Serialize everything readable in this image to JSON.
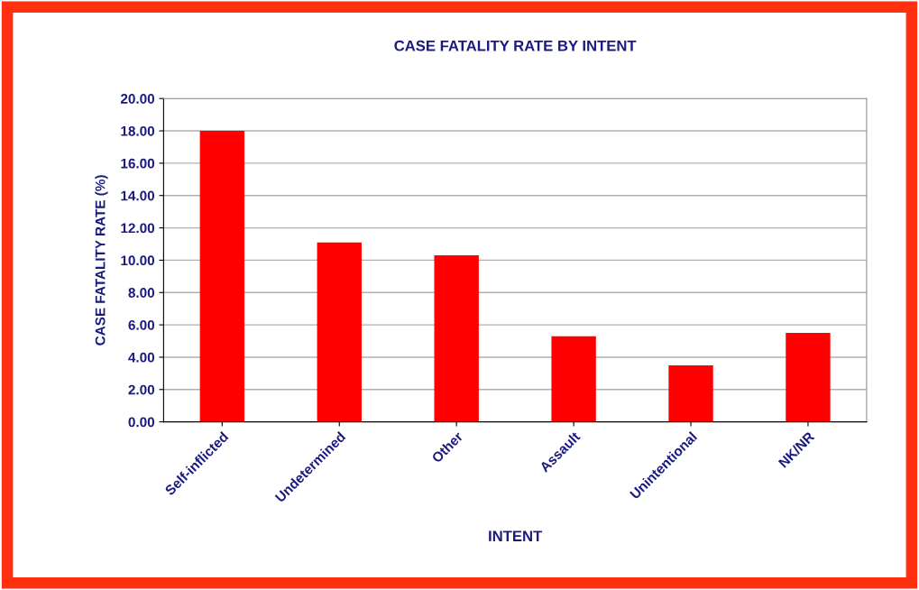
{
  "chart_data": {
    "type": "bar",
    "title": "CASE FATALITY RATE BY INTENT",
    "xlabel": "INTENT",
    "ylabel": "CASE FATALITY RATE (%)",
    "categories": [
      "Self-inflicted",
      "Undetermined",
      "Other",
      "Assault",
      "Unintentional",
      "NK/NR"
    ],
    "values": [
      18.0,
      11.1,
      10.3,
      5.3,
      3.5,
      5.5
    ],
    "color": "#ff0000",
    "ylim": [
      0,
      20
    ],
    "yticks": [
      {
        "value": 0,
        "label": "0.00"
      },
      {
        "value": 2,
        "label": "2.00"
      },
      {
        "value": 4,
        "label": "4.00"
      },
      {
        "value": 6,
        "label": "6.00"
      },
      {
        "value": 8,
        "label": "8.00"
      },
      {
        "value": 10,
        "label": "10.00"
      },
      {
        "value": 12,
        "label": "12.00"
      },
      {
        "value": 14,
        "label": "14.00"
      },
      {
        "value": 16,
        "label": "16.00"
      },
      {
        "value": 18,
        "label": "18.00"
      },
      {
        "value": 20,
        "label": "20.00"
      }
    ],
    "grid": "y",
    "legend": false
  }
}
